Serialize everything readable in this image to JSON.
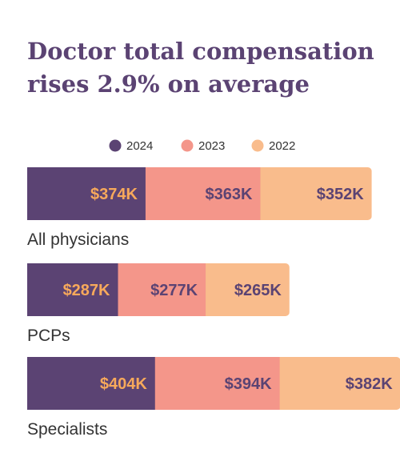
{
  "chart_data": {
    "type": "bar",
    "stacked": true,
    "orientation": "horizontal",
    "title": "Doctor total compensation rises 2.9% on average",
    "unit": "$K",
    "categories": [
      "All physicians",
      "PCPs",
      "Specialists"
    ],
    "series": [
      {
        "name": "2024",
        "color": "#5b4373",
        "label_color": "#f7a95b",
        "values": [
          374,
          287,
          404
        ],
        "labels": [
          "$374K",
          "$287K",
          "$404K"
        ]
      },
      {
        "name": "2023",
        "color": "#f4968a",
        "label_color": "#5b4373",
        "values": [
          363,
          277,
          394
        ],
        "labels": [
          "$363K",
          "$277K",
          "$394K"
        ]
      },
      {
        "name": "2022",
        "color": "#f9bc8c",
        "label_color": "#5b4373",
        "values": [
          352,
          265,
          382
        ],
        "labels": [
          "$352K",
          "$265K",
          "$382K"
        ]
      }
    ],
    "legend_position": "top-center",
    "grid": false,
    "axes": false
  }
}
